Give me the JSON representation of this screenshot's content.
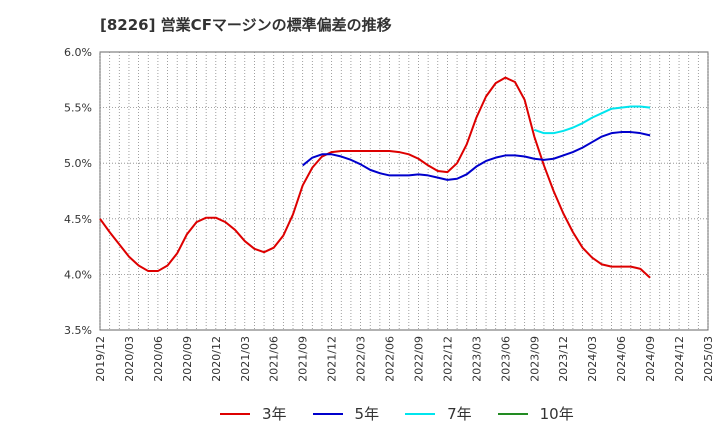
{
  "title": "[8226]  営業CFマージンの標準偏差の推移",
  "chart_data": {
    "type": "line",
    "title": "[8226]  営業CFマージンの標準偏差の推移",
    "xlabel": "",
    "ylabel": "",
    "ylim": [
      3.5,
      6.0
    ],
    "y_ticks": [
      "3.5%",
      "4.0%",
      "4.5%",
      "5.0%",
      "5.5%",
      "6.0%"
    ],
    "y_tick_values": [
      3.5,
      4.0,
      4.5,
      5.0,
      5.5,
      6.0
    ],
    "x_ticks": [
      "2019/12",
      "2020/03",
      "2020/06",
      "2020/09",
      "2020/12",
      "2021/03",
      "2021/06",
      "2021/09",
      "2021/12",
      "2022/03",
      "2022/06",
      "2022/09",
      "2022/12",
      "2023/03",
      "2023/06",
      "2023/09",
      "2023/12",
      "2024/03",
      "2024/06",
      "2024/09",
      "2024/12",
      "2025/03"
    ],
    "x_start": "2019/12",
    "grid": true,
    "legend_position": "bottom",
    "series": [
      {
        "name": "3年",
        "color": "#dd0000",
        "x": [
          "2019/12",
          "2020/01",
          "2020/02",
          "2020/03",
          "2020/04",
          "2020/05",
          "2020/06",
          "2020/07",
          "2020/08",
          "2020/09",
          "2020/10",
          "2020/11",
          "2020/12",
          "2021/01",
          "2021/02",
          "2021/03",
          "2021/04",
          "2021/05",
          "2021/06",
          "2021/07",
          "2021/08",
          "2021/09",
          "2021/10",
          "2021/11",
          "2021/12",
          "2022/01",
          "2022/02",
          "2022/03",
          "2022/04",
          "2022/05",
          "2022/06",
          "2022/07",
          "2022/08",
          "2022/09",
          "2022/10",
          "2022/11",
          "2022/12",
          "2023/01",
          "2023/02",
          "2023/03",
          "2023/04",
          "2023/05",
          "2023/06",
          "2023/07",
          "2023/08",
          "2023/09",
          "2023/10",
          "2023/11",
          "2023/12",
          "2024/01",
          "2024/02",
          "2024/03",
          "2024/04",
          "2024/05",
          "2024/06",
          "2024/07",
          "2024/08",
          "2024/09"
        ],
        "values": [
          4.5,
          4.38,
          4.27,
          4.16,
          4.08,
          4.03,
          4.03,
          4.08,
          4.19,
          4.36,
          4.47,
          4.51,
          4.51,
          4.47,
          4.4,
          4.3,
          4.23,
          4.2,
          4.24,
          4.35,
          4.54,
          4.8,
          4.96,
          5.06,
          5.1,
          5.11,
          5.11,
          5.11,
          5.11,
          5.11,
          5.11,
          5.1,
          5.08,
          5.04,
          4.98,
          4.93,
          4.92,
          5.0,
          5.17,
          5.41,
          5.6,
          5.72,
          5.77,
          5.73,
          5.57,
          5.24,
          4.98,
          4.75,
          4.55,
          4.38,
          4.24,
          4.15,
          4.09,
          4.07,
          4.07,
          4.07,
          4.05,
          3.97
        ]
      },
      {
        "name": "5年",
        "color": "#0000cc",
        "x": [
          "2021/09",
          "2021/10",
          "2021/11",
          "2021/12",
          "2022/01",
          "2022/02",
          "2022/03",
          "2022/04",
          "2022/05",
          "2022/06",
          "2022/07",
          "2022/08",
          "2022/09",
          "2022/10",
          "2022/11",
          "2022/12",
          "2023/01",
          "2023/02",
          "2023/03",
          "2023/04",
          "2023/05",
          "2023/06",
          "2023/07",
          "2023/08",
          "2023/09",
          "2023/10",
          "2023/11",
          "2023/12",
          "2024/01",
          "2024/02",
          "2024/03",
          "2024/04",
          "2024/05",
          "2024/06",
          "2024/07",
          "2024/08",
          "2024/09"
        ],
        "values": [
          4.98,
          5.05,
          5.08,
          5.08,
          5.06,
          5.03,
          4.99,
          4.94,
          4.91,
          4.89,
          4.89,
          4.89,
          4.9,
          4.89,
          4.87,
          4.85,
          4.86,
          4.9,
          4.97,
          5.02,
          5.05,
          5.07,
          5.07,
          5.06,
          5.04,
          5.03,
          5.04,
          5.07,
          5.1,
          5.14,
          5.19,
          5.24,
          5.27,
          5.28,
          5.28,
          5.27,
          5.25
        ]
      },
      {
        "name": "7年",
        "color": "#00e5ee",
        "x": [
          "2023/09",
          "2023/10",
          "2023/11",
          "2023/12",
          "2024/01",
          "2024/02",
          "2024/03",
          "2024/04",
          "2024/05",
          "2024/06",
          "2024/07",
          "2024/08",
          "2024/09"
        ],
        "values": [
          5.3,
          5.27,
          5.27,
          5.29,
          5.32,
          5.36,
          5.41,
          5.45,
          5.49,
          5.5,
          5.51,
          5.51,
          5.5
        ]
      },
      {
        "name": "10年",
        "color": "#228b22",
        "x": [],
        "values": []
      }
    ]
  }
}
